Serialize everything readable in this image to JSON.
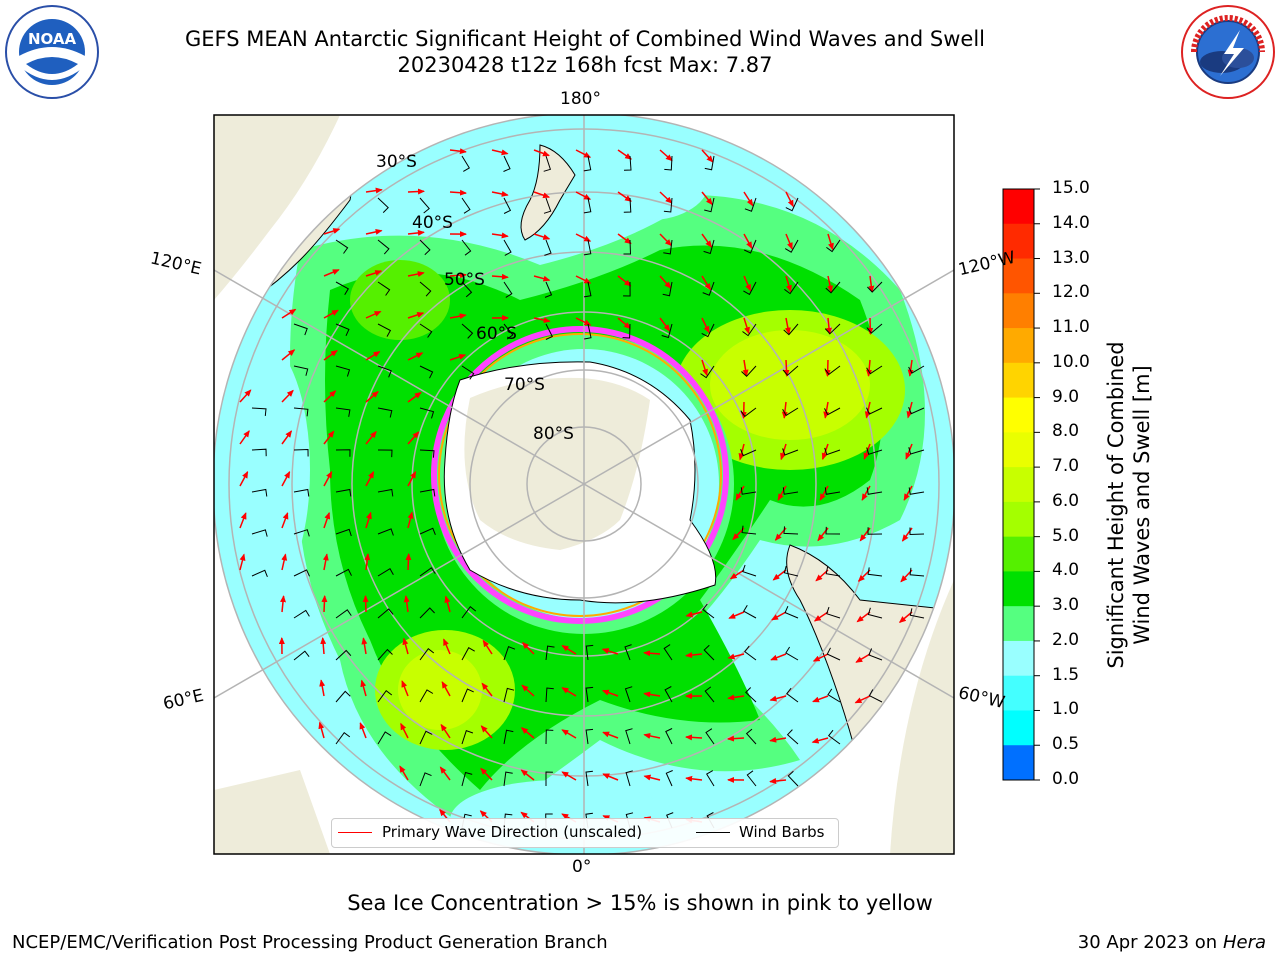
{
  "header": {
    "title_line1": "GEFS MEAN Antarctic Significant Height of Combined Wind Waves and Swell",
    "title_line2": "20230428 t12z 168h fcst   Max: 7.87"
  },
  "logos": {
    "left": {
      "name": "noaa-logo",
      "text": "NOAA"
    },
    "right": {
      "name": "nws-logo",
      "ring_text": "NATIONAL WEATHER SERVICE"
    }
  },
  "map": {
    "projection": "south-polar-stereographic",
    "lon_labels": {
      "top": "180°",
      "bottom": "0°",
      "left_upper": "120°E",
      "left_lower": "60°E",
      "right_upper": "120°W",
      "right_lower": "60°W"
    },
    "lat_labels": [
      "30°S",
      "40°S",
      "50°S",
      "60°S",
      "70°S",
      "80°S"
    ],
    "colors": {
      "land": "#eeecda",
      "antarctica": "#ffffff",
      "graticule": "#b4b4b4",
      "wave_arrow": "#ff0000",
      "wind_barb": "#000000",
      "sea_ice": "#ff44ff"
    }
  },
  "legend": {
    "primary_wave": "Primary Wave Direction (unscaled)",
    "wind_barbs": "Wind Barbs"
  },
  "colorbar": {
    "label_line1": "Significant Height of Combined",
    "label_line2": "Wind Waves and Swell [m]",
    "ticks": [
      "15.0",
      "14.0",
      "13.0",
      "12.0",
      "11.0",
      "10.0",
      "9.0",
      "8.0",
      "7.0",
      "6.0",
      "5.0",
      "4.0",
      "3.0",
      "2.0",
      "1.5",
      "1.0",
      "0.5",
      "0.0"
    ],
    "colors": [
      "#ff0000",
      "#ff2a00",
      "#ff5500",
      "#ff7f00",
      "#ffaa00",
      "#ffd400",
      "#ffff00",
      "#eaff00",
      "#c8ff00",
      "#a4ff00",
      "#55f000",
      "#00e000",
      "#55ff80",
      "#99ffff",
      "#44ffff",
      "#00ffff",
      "#0070ff",
      "#0000ff"
    ]
  },
  "footer": {
    "note": "Sea Ice Concentration > 15% is shown in pink to yellow",
    "credit": "NCEP/EMC/Verification Post Processing Product Generation Branch",
    "date": "30 Apr 2023 on ",
    "machine": "Hera"
  }
}
